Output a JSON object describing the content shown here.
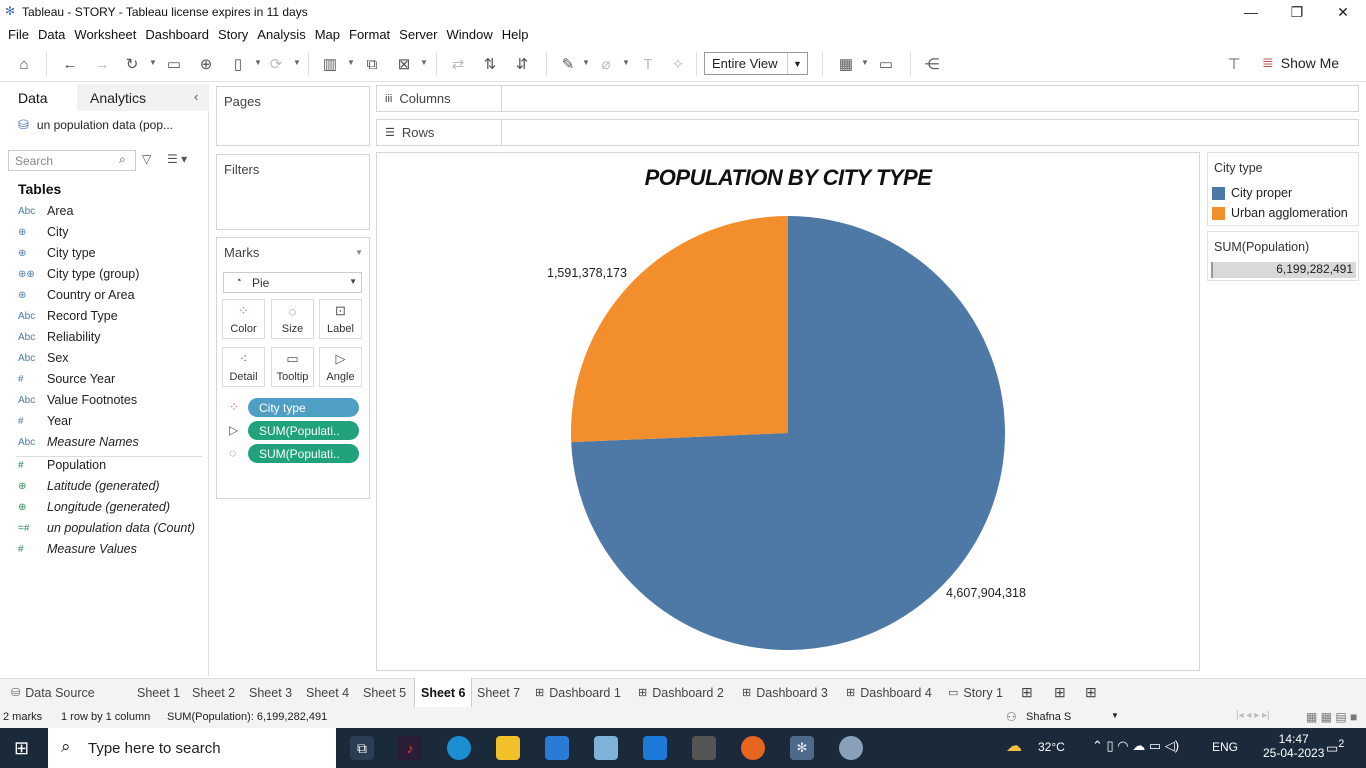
{
  "window": {
    "title": "Tableau - STORY - Tableau license expires in 11 days"
  },
  "menu": [
    "File",
    "Data",
    "Worksheet",
    "Dashboard",
    "Story",
    "Analysis",
    "Map",
    "Format",
    "Server",
    "Window",
    "Help"
  ],
  "toolbar": {
    "fit_label": "Entire View",
    "show_me": "Show Me"
  },
  "left_pane": {
    "tab_data": "Data",
    "tab_analytics": "Analytics",
    "datasource": "un population data (pop...",
    "search_placeholder": "Search",
    "tables_heading": "Tables",
    "dimensions": [
      {
        "icon": "Abc",
        "name": "Area"
      },
      {
        "icon": "globe",
        "name": "City"
      },
      {
        "icon": "globe",
        "name": "City type"
      },
      {
        "icon": "group",
        "name": "City type (group)"
      },
      {
        "icon": "globe",
        "name": "Country or Area"
      },
      {
        "icon": "Abc",
        "name": "Record Type"
      },
      {
        "icon": "Abc",
        "name": "Reliability"
      },
      {
        "icon": "Abc",
        "name": "Sex"
      },
      {
        "icon": "#",
        "name": "Source Year"
      },
      {
        "icon": "Abc",
        "name": "Value Footnotes"
      },
      {
        "icon": "#",
        "name": "Year"
      },
      {
        "icon": "Abc",
        "name": "Measure Names"
      }
    ],
    "measures": [
      {
        "icon": "#",
        "name": "Population"
      },
      {
        "icon": "globe",
        "name": "Latitude (generated)"
      },
      {
        "icon": "globe",
        "name": "Longitude (generated)"
      },
      {
        "icon": "=#",
        "name": "un population data (Count)"
      },
      {
        "icon": "#",
        "name": "Measure Values"
      }
    ]
  },
  "shelves": {
    "pages": "Pages",
    "filters": "Filters",
    "columns": "Columns",
    "rows": "Rows"
  },
  "marks": {
    "title": "Marks",
    "type": "Pie",
    "buttons": [
      "Color",
      "Size",
      "Label",
      "Detail",
      "Tooltip",
      "Angle"
    ],
    "pills": [
      "City type",
      "SUM(Populati..",
      "SUM(Populati.."
    ]
  },
  "chart_data": {
    "type": "pie",
    "title": "POPULATION BY CITY TYPE",
    "slices": [
      {
        "name": "City proper",
        "value": 4607904318,
        "label": "4,607,904,318",
        "color": "#4e79a7"
      },
      {
        "name": "Urban agglomeration",
        "value": 1591378173,
        "label": "1,591,378,173",
        "color": "#f28e2b"
      }
    ]
  },
  "legend": {
    "title": "City type",
    "items": [
      {
        "name": "City proper",
        "color": "#4e79a7"
      },
      {
        "name": "Urban agglomeration",
        "color": "#f28e2b"
      }
    ],
    "sum_title": "SUM(Population)",
    "sum_value": "6,199,282,491"
  },
  "sheet_tabs": [
    "Data Source",
    "Sheet 1",
    "Sheet 2",
    "Sheet 3",
    "Sheet 4",
    "Sheet 5",
    "Sheet 6",
    "Sheet 7",
    "Dashboard 1",
    "Dashboard 2",
    "Dashboard 3",
    "Dashboard 4",
    "Story 1"
  ],
  "active_tab": "Sheet 6",
  "status": {
    "marks": "2 marks",
    "rows": "1 row by 1 column",
    "sum": "SUM(Population): 6,199,282,491",
    "user": "Shafna S"
  },
  "taskbar": {
    "search_placeholder": "Type here to search",
    "temp": "32°C",
    "lang": "ENG",
    "time": "14:47",
    "date": "25-04-2023",
    "notif": "2"
  }
}
